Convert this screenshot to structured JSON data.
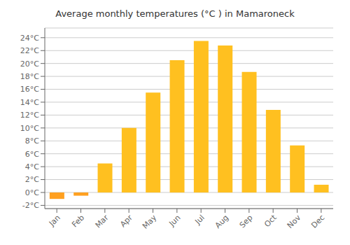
{
  "chart_data": {
    "type": "bar",
    "title": "Average monthly temperatures (°C ) in Mamaroneck",
    "categories": [
      "Jan",
      "Feb",
      "Mar",
      "Apr",
      "May",
      "Jun",
      "Jul",
      "Aug",
      "Sep",
      "Oct",
      "Nov",
      "Dec"
    ],
    "values": [
      -1.0,
      -0.5,
      4.5,
      10.0,
      15.5,
      20.5,
      23.5,
      22.8,
      18.7,
      12.8,
      7.3,
      1.2
    ],
    "colors": [
      "#FFA020",
      "#FFA020",
      "#FFC020",
      "#FFC020",
      "#FFC020",
      "#FFC020",
      "#FFC020",
      "#FFC020",
      "#FFC020",
      "#FFC020",
      "#FFC020",
      "#FFC020"
    ],
    "ylim": [
      -2.5,
      25.5
    ],
    "yticks": [
      {
        "value": -2,
        "label": "-2°C"
      },
      {
        "value": 0,
        "label": "0°C"
      },
      {
        "value": 2,
        "label": "2°C"
      },
      {
        "value": 4,
        "label": "4°C"
      },
      {
        "value": 6,
        "label": "6°C"
      },
      {
        "value": 8,
        "label": "8°C"
      },
      {
        "value": 10,
        "label": "10°C"
      },
      {
        "value": 12,
        "label": "12°C"
      },
      {
        "value": 14,
        "label": "14°C"
      },
      {
        "value": 16,
        "label": "16°C"
      },
      {
        "value": 18,
        "label": "18°C"
      },
      {
        "value": 20,
        "label": "20°C"
      },
      {
        "value": 22,
        "label": "22°C"
      },
      {
        "value": 24,
        "label": "24°C"
      }
    ],
    "grid": true
  }
}
